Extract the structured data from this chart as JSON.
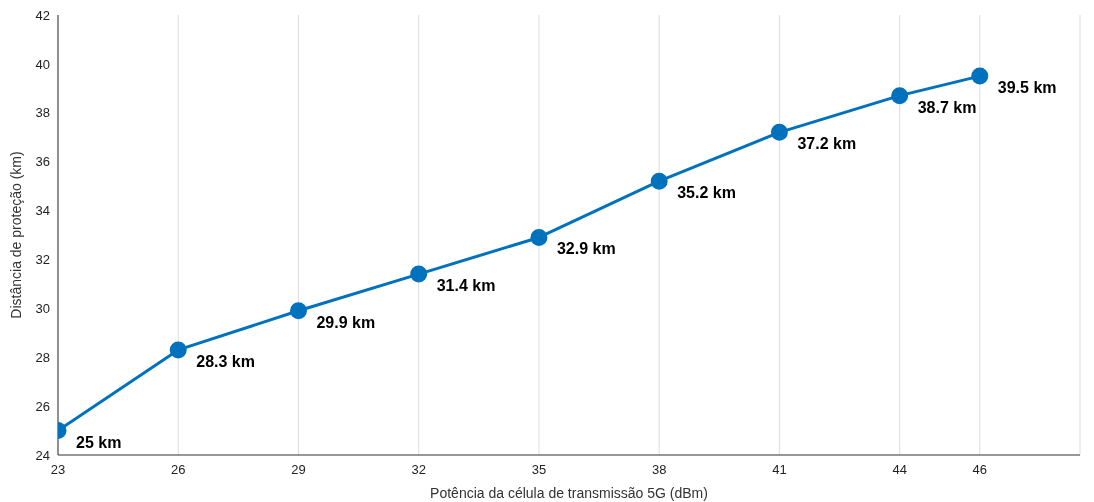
{
  "chart_data": {
    "type": "line",
    "xlabel": "Potência da célula de transmissão 5G (dBm)",
    "ylabel": "Distância de proteção (km)",
    "x": [
      23,
      26,
      29,
      32,
      35,
      38,
      41,
      44,
      46
    ],
    "series": [
      {
        "color": "#0072bd",
        "values": [
          25,
          28.3,
          29.9,
          31.4,
          32.9,
          35.2,
          37.2,
          38.7,
          39.5
        ],
        "value_labels": [
          "25 km",
          "28.3 km",
          "29.9 km",
          "31.4 km",
          "32.9 km",
          "35.2 km",
          "37.2 km",
          "38.7 km",
          "39.5 km"
        ]
      }
    ],
    "xlim": [
      23,
      48.5
    ],
    "xticks": [
      23,
      26,
      29,
      32,
      35,
      38,
      41,
      44,
      46
    ],
    "ylim": [
      24,
      42
    ],
    "yticks": [
      24,
      26,
      28,
      30,
      32,
      34,
      36,
      38,
      40,
      42
    ],
    "grid": "x",
    "marker": "circle",
    "line_style": "solid"
  }
}
